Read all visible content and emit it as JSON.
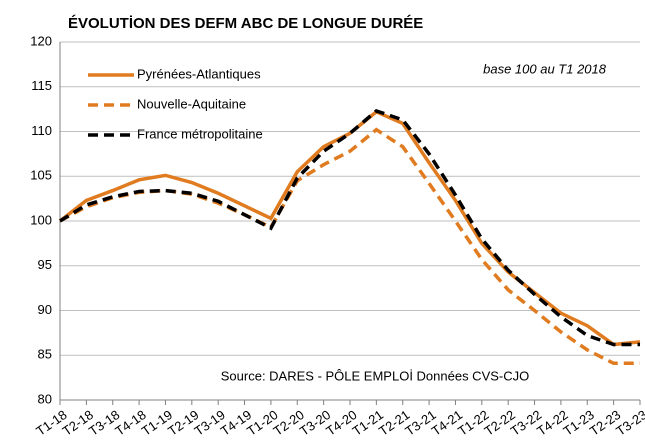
{
  "chart_data": {
    "type": "line",
    "title": "ÉVOLUTİON DES DEFM ABC DE LONGUE DURÉE",
    "annotations": [
      "base 100  au T1 2018",
      "Source: DARES - PÔLE EMPLOİ  Données CVS-CJO"
    ],
    "categories": [
      "T1-18",
      "T2-18",
      "T3-18",
      "T4-18",
      "T1-19",
      "T2-19",
      "T3-19",
      "T4-19",
      "T1-20",
      "T2-20",
      "T3-20",
      "T4-20",
      "T1-21",
      "T2-21",
      "T3-21",
      "T4-21",
      "T1-22",
      "T2-22",
      "T3-22",
      "T4-22",
      "T1-23",
      "T2-23",
      "T3-23"
    ],
    "series": [
      {
        "name": "Pyrénées-Atlantiques",
        "color": "#e07b20",
        "dash": "solid",
        "values": [
          100,
          102.3,
          103.4,
          104.6,
          105.1,
          104.3,
          103.1,
          101.7,
          100.3,
          105.5,
          108.3,
          109.8,
          112.2,
          110.9,
          106.5,
          102.3,
          97.5,
          94.3,
          92.0,
          89.7,
          88.3,
          86.2,
          86.5
        ]
      },
      {
        "name": "Nouvelle-Aquitaine",
        "color": "#e07b20",
        "dash": "dashed",
        "values": [
          100,
          101.6,
          102.6,
          103.2,
          103.4,
          103.0,
          102.0,
          100.7,
          99.3,
          104.5,
          106.3,
          107.8,
          110.2,
          108.3,
          104.2,
          100.0,
          95.7,
          92.3,
          90.0,
          87.6,
          85.6,
          84.1,
          84.1
        ]
      },
      {
        "name": "France métropolitaine",
        "color": "#000000",
        "dash": "dashed",
        "values": [
          100,
          101.8,
          102.7,
          103.3,
          103.4,
          103.1,
          102.2,
          100.7,
          99.2,
          104.8,
          107.8,
          109.8,
          112.3,
          111.3,
          107.5,
          102.9,
          98.0,
          94.5,
          91.8,
          89.3,
          87.2,
          86.2,
          86.2
        ]
      }
    ],
    "ylim": [
      80,
      120
    ],
    "yticks": [
      80,
      85,
      90,
      95,
      100,
      105,
      110,
      115,
      120
    ],
    "grid": true
  }
}
